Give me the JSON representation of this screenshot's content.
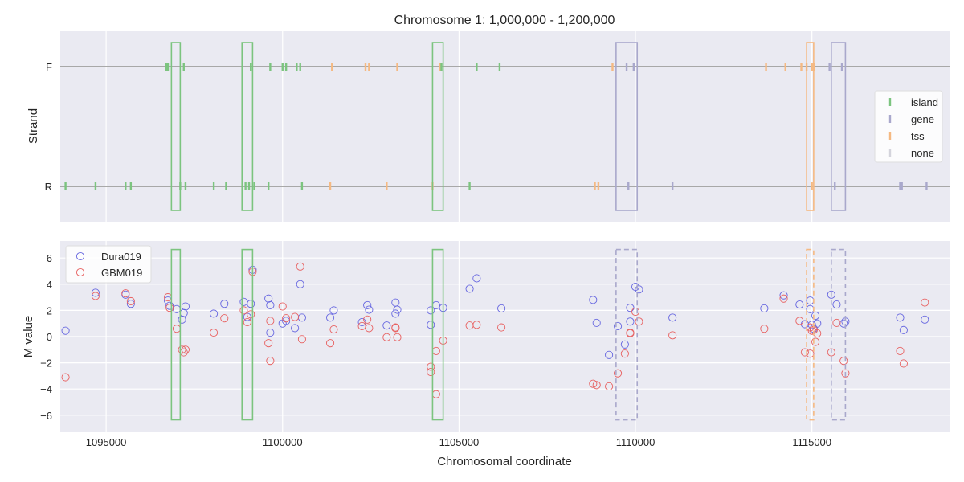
{
  "chart_data": {
    "type": "scatter",
    "title": "Chromosome 1: 1,000,000 - 1,200,000",
    "xlabel": "Chromosomal coordinate",
    "xlim": [
      1093700,
      1118900
    ],
    "xticks": [
      1095000,
      1100000,
      1105000,
      1110000,
      1115000
    ],
    "xtick_labels": [
      "1095000",
      "1100000",
      "1105000",
      "1110000",
      "1115000"
    ],
    "grid": true,
    "colors": {
      "island": "#7cc47f",
      "gene": "#a9a8cc",
      "tss": "#f5b982",
      "none": "#d4d4dc",
      "dura": "#6666e0",
      "gbm": "#e86060",
      "panel_bg": "#eaeaf2",
      "strand_line": "#a8a8a8"
    },
    "strand_panel": {
      "ylabel": "Strand",
      "ytick_labels": [
        "F",
        "R"
      ],
      "legend": {
        "position": "right",
        "entries": [
          {
            "key": "island",
            "label": "island"
          },
          {
            "key": "gene",
            "label": "gene"
          },
          {
            "key": "tss",
            "label": "tss"
          },
          {
            "key": "none",
            "label": "none"
          }
        ]
      },
      "marks_F": [
        {
          "x": 1096700,
          "type": "island"
        },
        {
          "x": 1096750,
          "type": "island"
        },
        {
          "x": 1097200,
          "type": "island"
        },
        {
          "x": 1099100,
          "type": "island"
        },
        {
          "x": 1099650,
          "type": "island"
        },
        {
          "x": 1100000,
          "type": "island"
        },
        {
          "x": 1100100,
          "type": "island"
        },
        {
          "x": 1100400,
          "type": "island"
        },
        {
          "x": 1100500,
          "type": "island"
        },
        {
          "x": 1101400,
          "type": "tss"
        },
        {
          "x": 1102350,
          "type": "tss"
        },
        {
          "x": 1102450,
          "type": "tss"
        },
        {
          "x": 1103250,
          "type": "tss"
        },
        {
          "x": 1104450,
          "type": "tss"
        },
        {
          "x": 1104500,
          "type": "island"
        },
        {
          "x": 1105500,
          "type": "island"
        },
        {
          "x": 1106150,
          "type": "island"
        },
        {
          "x": 1109350,
          "type": "tss"
        },
        {
          "x": 1109750,
          "type": "gene"
        },
        {
          "x": 1109950,
          "type": "gene"
        },
        {
          "x": 1113700,
          "type": "tss"
        },
        {
          "x": 1114250,
          "type": "tss"
        },
        {
          "x": 1114700,
          "type": "tss"
        },
        {
          "x": 1114850,
          "type": "tss"
        },
        {
          "x": 1115000,
          "type": "tss"
        },
        {
          "x": 1115050,
          "type": "tss"
        },
        {
          "x": 1115500,
          "type": "gene"
        },
        {
          "x": 1115850,
          "type": "gene"
        }
      ],
      "marks_R": [
        {
          "x": 1093850,
          "type": "island"
        },
        {
          "x": 1094700,
          "type": "island"
        },
        {
          "x": 1095550,
          "type": "island"
        },
        {
          "x": 1095700,
          "type": "island"
        },
        {
          "x": 1097100,
          "type": "island"
        },
        {
          "x": 1097250,
          "type": "island"
        },
        {
          "x": 1098050,
          "type": "island"
        },
        {
          "x": 1098400,
          "type": "island"
        },
        {
          "x": 1098950,
          "type": "island"
        },
        {
          "x": 1099050,
          "type": "island"
        },
        {
          "x": 1099200,
          "type": "island"
        },
        {
          "x": 1099600,
          "type": "island"
        },
        {
          "x": 1100550,
          "type": "island"
        },
        {
          "x": 1101350,
          "type": "tss"
        },
        {
          "x": 1102950,
          "type": "tss"
        },
        {
          "x": 1104250,
          "type": "tss"
        },
        {
          "x": 1105300,
          "type": "island"
        },
        {
          "x": 1108850,
          "type": "tss"
        },
        {
          "x": 1108950,
          "type": "tss"
        },
        {
          "x": 1109800,
          "type": "gene"
        },
        {
          "x": 1111050,
          "type": "gene"
        },
        {
          "x": 1115000,
          "type": "tss"
        },
        {
          "x": 1115650,
          "type": "gene"
        },
        {
          "x": 1117500,
          "type": "gene"
        },
        {
          "x": 1117550,
          "type": "gene"
        },
        {
          "x": 1118250,
          "type": "gene"
        }
      ]
    },
    "mvalue_panel": {
      "ylabel": "M value",
      "ylim": [
        -7.3,
        7.3
      ],
      "yticks": [
        -6,
        -4,
        -2,
        0,
        2,
        4,
        6
      ],
      "ytick_labels": [
        "−6",
        "−4",
        "−2",
        "0",
        "2",
        "4",
        "6"
      ],
      "legend": {
        "position": "top-left",
        "entries": [
          {
            "key": "dura",
            "label": "Dura019"
          },
          {
            "key": "gbm",
            "label": "GBM019"
          }
        ]
      }
    },
    "regions": [
      {
        "x0": 1096850,
        "x1": 1097100,
        "type": "island"
      },
      {
        "x0": 1098850,
        "x1": 1099150,
        "type": "island"
      },
      {
        "x0": 1104250,
        "x1": 1104550,
        "type": "island"
      },
      {
        "x0": 1109450,
        "x1": 1110050,
        "type": "gene"
      },
      {
        "x0": 1114850,
        "x1": 1115050,
        "type": "tss"
      },
      {
        "x0": 1115550,
        "x1": 1115950,
        "type": "gene"
      }
    ],
    "series": [
      {
        "name": "Dura019",
        "color_key": "dura",
        "points": [
          [
            1093850,
            0.45
          ],
          [
            1094700,
            3.35
          ],
          [
            1095550,
            3.2
          ],
          [
            1095700,
            2.5
          ],
          [
            1096750,
            2.75
          ],
          [
            1096800,
            2.35
          ],
          [
            1097000,
            2.1
          ],
          [
            1097150,
            1.3
          ],
          [
            1097200,
            1.8
          ],
          [
            1097250,
            2.3
          ],
          [
            1098050,
            1.75
          ],
          [
            1098350,
            2.5
          ],
          [
            1098900,
            2.65
          ],
          [
            1099000,
            1.5
          ],
          [
            1099100,
            2.5
          ],
          [
            1099150,
            5.1
          ],
          [
            1099600,
            2.9
          ],
          [
            1099650,
            2.4
          ],
          [
            1099650,
            0.3
          ],
          [
            1100000,
            1.0
          ],
          [
            1100100,
            1.2
          ],
          [
            1100350,
            0.65
          ],
          [
            1100500,
            4.0
          ],
          [
            1100550,
            1.45
          ],
          [
            1101350,
            1.45
          ],
          [
            1101450,
            2.0
          ],
          [
            1102250,
            1.1
          ],
          [
            1102400,
            2.4
          ],
          [
            1102450,
            2.05
          ],
          [
            1102950,
            0.85
          ],
          [
            1103200,
            2.6
          ],
          [
            1103200,
            1.75
          ],
          [
            1103250,
            2.05
          ],
          [
            1104200,
            0.9
          ],
          [
            1104200,
            2.0
          ],
          [
            1104350,
            2.4
          ],
          [
            1104550,
            2.2
          ],
          [
            1105300,
            3.65
          ],
          [
            1105500,
            4.45
          ],
          [
            1106200,
            2.15
          ],
          [
            1108800,
            2.8
          ],
          [
            1108900,
            1.05
          ],
          [
            1109250,
            -1.4
          ],
          [
            1109500,
            0.8
          ],
          [
            1109700,
            -0.6
          ],
          [
            1109850,
            1.15
          ],
          [
            1109850,
            2.2
          ],
          [
            1110000,
            3.8
          ],
          [
            1110100,
            3.6
          ],
          [
            1111050,
            1.45
          ],
          [
            1113650,
            2.15
          ],
          [
            1114200,
            3.15
          ],
          [
            1114650,
            2.45
          ],
          [
            1114800,
            0.95
          ],
          [
            1114950,
            2.75
          ],
          [
            1114950,
            2.1
          ],
          [
            1115000,
            0.9
          ],
          [
            1115050,
            0.6
          ],
          [
            1115100,
            1.6
          ],
          [
            1115150,
            1.0
          ],
          [
            1115550,
            3.2
          ],
          [
            1115700,
            2.45
          ],
          [
            1115900,
            1.0
          ],
          [
            1115950,
            1.15
          ],
          [
            1117500,
            1.45
          ],
          [
            1117600,
            0.5
          ],
          [
            1118200,
            1.3
          ]
        ]
      },
      {
        "name": "GBM019",
        "color_key": "gbm",
        "points": [
          [
            1093850,
            -3.1
          ],
          [
            1094700,
            3.1
          ],
          [
            1095550,
            3.3
          ],
          [
            1095700,
            2.7
          ],
          [
            1096750,
            3.0
          ],
          [
            1096800,
            2.2
          ],
          [
            1097000,
            0.6
          ],
          [
            1097150,
            -1.0
          ],
          [
            1097200,
            -1.2
          ],
          [
            1097250,
            -1.0
          ],
          [
            1098050,
            0.3
          ],
          [
            1098350,
            1.4
          ],
          [
            1098900,
            2.0
          ],
          [
            1099000,
            1.1
          ],
          [
            1099100,
            1.7
          ],
          [
            1099150,
            4.95
          ],
          [
            1099600,
            -0.5
          ],
          [
            1099650,
            1.2
          ],
          [
            1099650,
            -1.85
          ],
          [
            1100000,
            2.3
          ],
          [
            1100100,
            1.4
          ],
          [
            1100350,
            1.5
          ],
          [
            1100500,
            5.35
          ],
          [
            1100550,
            -0.2
          ],
          [
            1101350,
            -0.5
          ],
          [
            1101450,
            0.55
          ],
          [
            1102250,
            0.8
          ],
          [
            1102400,
            1.3
          ],
          [
            1102450,
            0.65
          ],
          [
            1102950,
            -0.05
          ],
          [
            1103200,
            0.7
          ],
          [
            1103200,
            0.65
          ],
          [
            1103250,
            -0.05
          ],
          [
            1104200,
            -2.3
          ],
          [
            1104200,
            -2.7
          ],
          [
            1104350,
            -4.4
          ],
          [
            1104350,
            -1.1
          ],
          [
            1104550,
            -0.3
          ],
          [
            1105300,
            0.85
          ],
          [
            1105500,
            0.9
          ],
          [
            1106200,
            0.7
          ],
          [
            1108800,
            -3.6
          ],
          [
            1108900,
            -3.7
          ],
          [
            1109250,
            -3.8
          ],
          [
            1109500,
            -2.8
          ],
          [
            1109700,
            -1.3
          ],
          [
            1109850,
            0.25
          ],
          [
            1109850,
            0.3
          ],
          [
            1110000,
            1.9
          ],
          [
            1110100,
            1.15
          ],
          [
            1111050,
            0.1
          ],
          [
            1113650,
            0.6
          ],
          [
            1114200,
            2.9
          ],
          [
            1114650,
            1.2
          ],
          [
            1114800,
            -1.2
          ],
          [
            1114950,
            0.7
          ],
          [
            1114950,
            -1.3
          ],
          [
            1115000,
            0.45
          ],
          [
            1115050,
            0.5
          ],
          [
            1115100,
            -0.4
          ],
          [
            1115150,
            0.25
          ],
          [
            1115550,
            -1.2
          ],
          [
            1115700,
            1.05
          ],
          [
            1115900,
            -1.85
          ],
          [
            1115950,
            -2.8
          ],
          [
            1117500,
            -1.1
          ],
          [
            1117600,
            -2.05
          ],
          [
            1118200,
            2.6
          ]
        ]
      }
    ]
  }
}
